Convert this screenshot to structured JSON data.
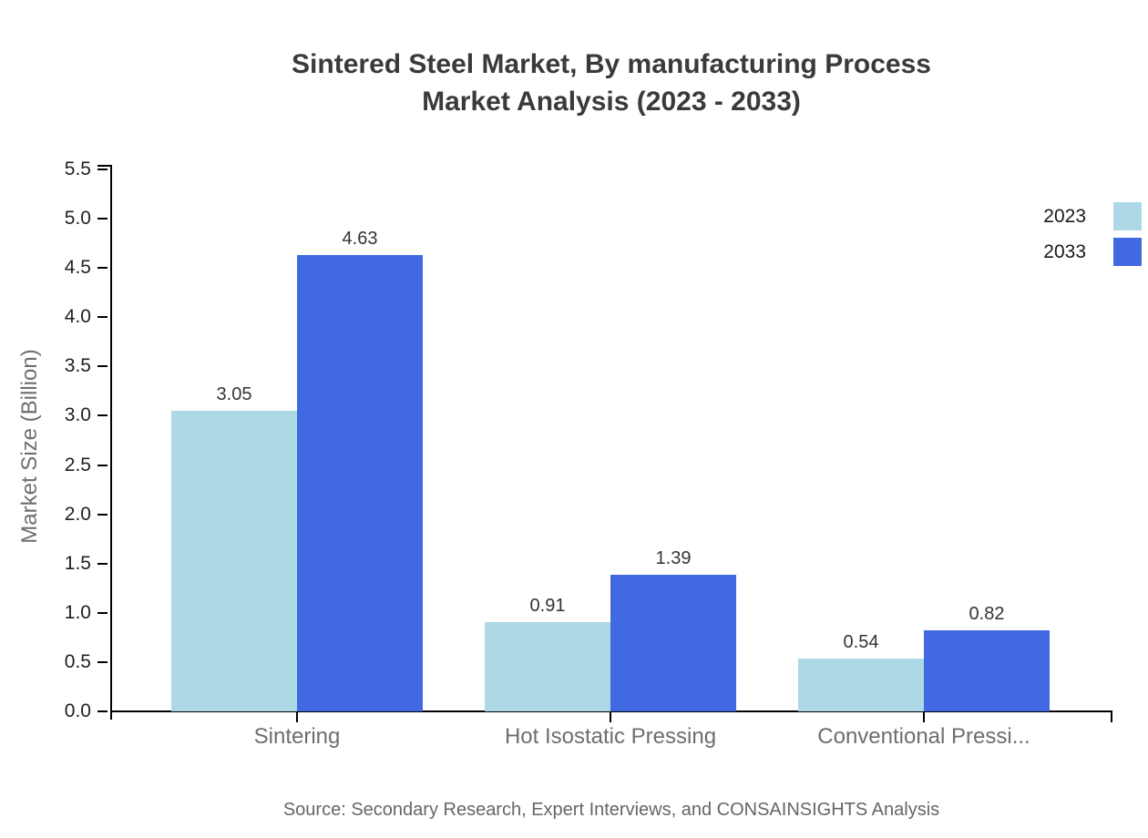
{
  "title": {
    "line1": "Sintered Steel Market, By manufacturing Process",
    "line2": "Market Analysis (2023 - 2033)"
  },
  "source": "Source: Secondary Research, Expert Interviews, and CONSAINSIGHTS Analysis",
  "chart_data": {
    "type": "bar",
    "categories": [
      "Sintering",
      "Hot Isostatic Pressing",
      "Conventional Pressi..."
    ],
    "series": [
      {
        "name": "2023",
        "color": "#ADD8E6",
        "values": [
          3.05,
          0.91,
          0.54
        ]
      },
      {
        "name": "2033",
        "color": "#4169E1",
        "values": [
          4.63,
          1.39,
          0.82
        ]
      }
    ],
    "title": "Sintered Steel Market, By manufacturing Process Market Analysis (2023 - 2033)",
    "xlabel": "",
    "ylabel": "Market Size (Billion)",
    "ylim": [
      0,
      5.5
    ],
    "ytick_step": 0.5,
    "ytick_labels": [
      "0.0",
      "0.5",
      "1.0",
      "1.5",
      "2.0",
      "2.5",
      "3.0",
      "3.5",
      "4.0",
      "4.5",
      "5.0",
      "5.5"
    ],
    "value_label_format": "2-decimals",
    "grid": false,
    "legend_position": "top-right",
    "axis_color": "#000000",
    "label_color": "#6e6e6e",
    "value_label_color": "#333333"
  }
}
